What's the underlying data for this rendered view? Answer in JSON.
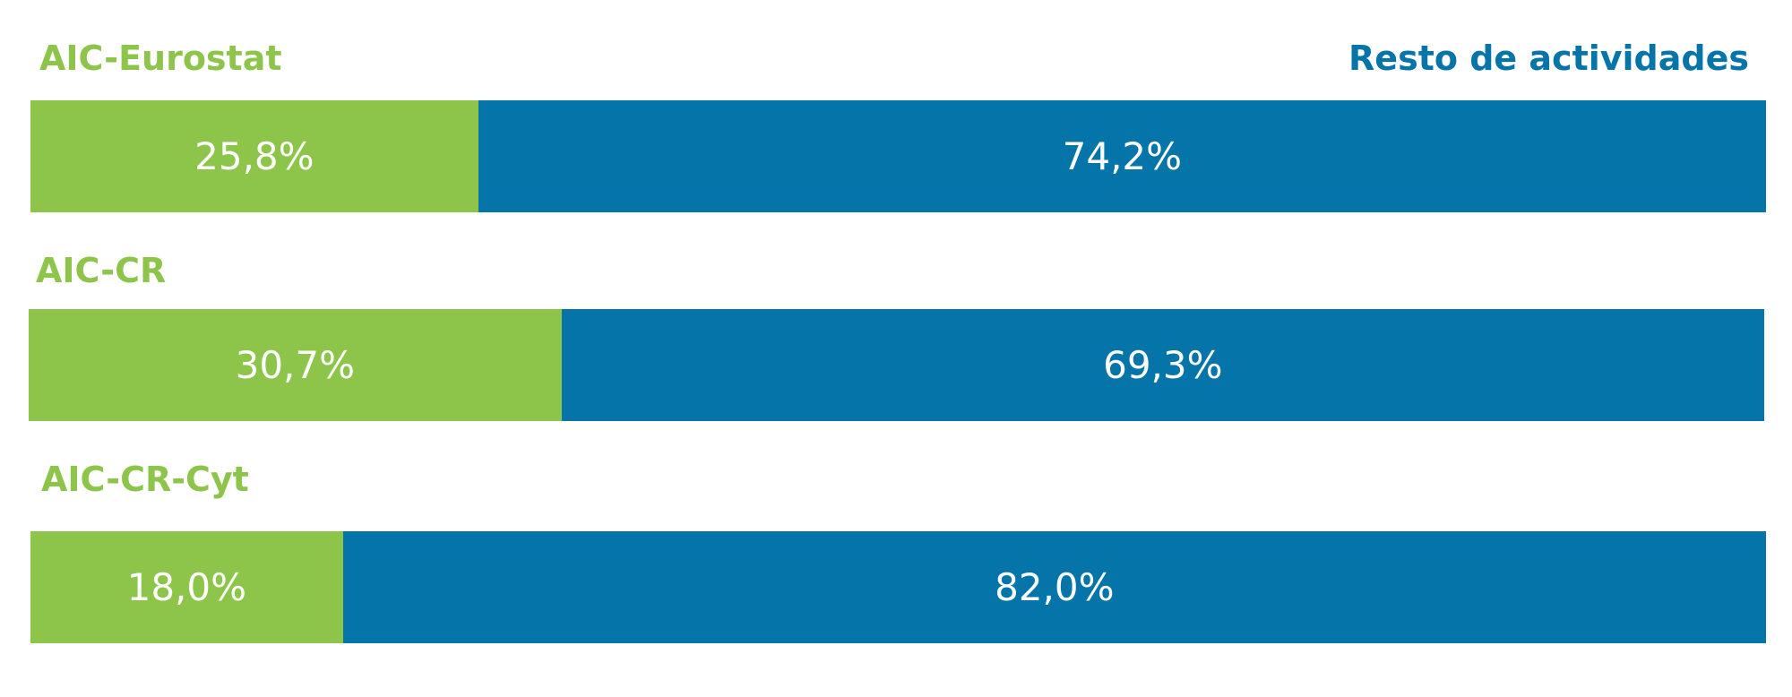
{
  "chart_data": {
    "type": "bar",
    "orientation": "horizontal",
    "stacked": true,
    "normalized_to_100": true,
    "legend_placement": "top",
    "categories": [
      "AIC-Eurostat",
      "AIC-CR",
      "AIC-CR-Cyt"
    ],
    "series": [
      {
        "name": "AIC-Eurostat",
        "color": "#8dc54b",
        "values": [
          25.8,
          30.7,
          18.0
        ],
        "labels": [
          "25,8%",
          "30,7%",
          "18,0%"
        ]
      },
      {
        "name": "Resto de actividades",
        "color": "#0574a8",
        "values": [
          74.2,
          69.3,
          82.0
        ],
        "labels": [
          "74,2%",
          "69,3%",
          "82,0%"
        ]
      }
    ],
    "row_titles": [
      "AIC-Eurostat",
      "AIC-CR",
      "AIC-CR-Cyt"
    ],
    "legend_right": "Resto de actividades"
  }
}
